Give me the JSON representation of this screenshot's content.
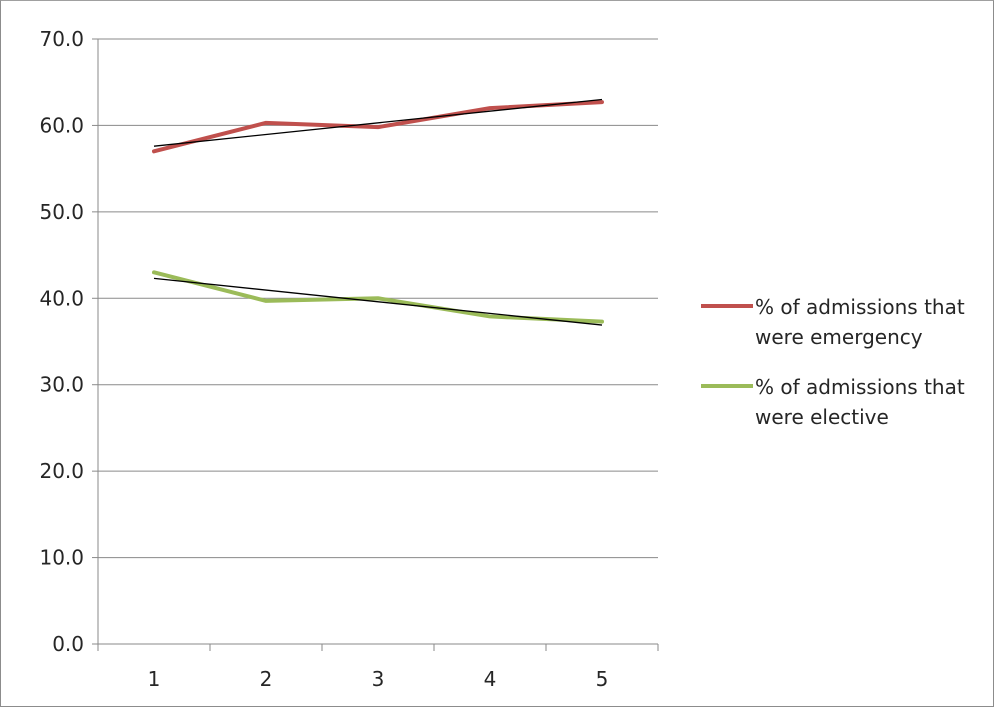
{
  "chart_data": {
    "type": "line",
    "title": "",
    "xlabel": "",
    "ylabel": "",
    "categories": [
      "1",
      "2",
      "3",
      "4",
      "5"
    ],
    "ylim": [
      0,
      70
    ],
    "yticks": [
      "0.0",
      "10.0",
      "20.0",
      "30.0",
      "40.0",
      "50.0",
      "60.0",
      "70.0"
    ],
    "grid": true,
    "legend_position": "right",
    "series": [
      {
        "name": "% of admissions that were emergency",
        "legend_lines": [
          "% of admissions that",
          "were emergency"
        ],
        "color": "#c0504d",
        "values": [
          57.0,
          60.3,
          59.8,
          62.0,
          62.7
        ],
        "trendline": [
          57.6,
          63.0
        ]
      },
      {
        "name": "% of admissions that were elective",
        "legend_lines": [
          "% of admissions that",
          "were elective"
        ],
        "color": "#9bbb59",
        "values": [
          43.0,
          39.7,
          40.0,
          37.9,
          37.3
        ],
        "trendline": [
          42.3,
          36.9
        ]
      }
    ],
    "trendline_color": "#000000"
  }
}
